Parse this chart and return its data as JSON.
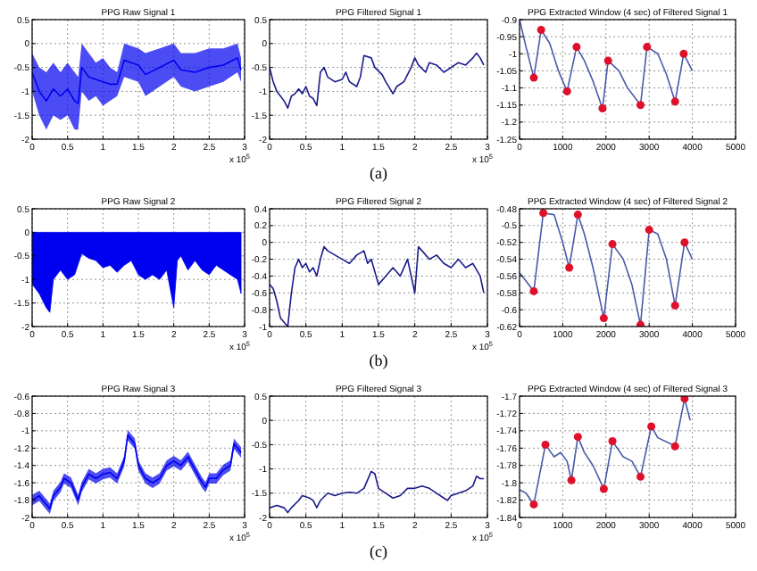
{
  "chart_data": [
    {
      "type": "line",
      "title": "PPG Raw Signal 1",
      "xlabel": "x 10$^{5}$",
      "xlim": [
        0,
        3
      ],
      "xticks": [
        0,
        0.5,
        1,
        1.5,
        2,
        2.5,
        3
      ],
      "ylim": [
        -2,
        0.5
      ],
      "yticks": [
        -2,
        -1.5,
        -1,
        -0.5,
        0,
        0.5
      ],
      "grid": true,
      "series": [
        {
          "color": "#0000f0",
          "x": [
            0,
            0.1,
            0.2,
            0.3,
            0.4,
            0.5,
            0.6,
            0.65,
            0.7,
            0.8,
            0.9,
            1.0,
            1.1,
            1.2,
            1.3,
            1.5,
            1.6,
            1.8,
            2.0,
            2.1,
            2.3,
            2.5,
            2.7,
            2.9,
            2.95
          ],
          "values": [
            -0.6,
            -1,
            -1.2,
            -0.95,
            -1.1,
            -0.95,
            -1.2,
            -1.25,
            -0.5,
            -0.7,
            -0.75,
            -0.8,
            -0.85,
            -0.85,
            -0.35,
            -0.45,
            -0.65,
            -0.5,
            -0.35,
            -0.55,
            -0.6,
            -0.5,
            -0.45,
            -0.3,
            -0.55
          ],
          "lower": [
            -1,
            -1.5,
            -1.8,
            -1.5,
            -1.6,
            -1.5,
            -1.8,
            -1.8,
            -1,
            -1.2,
            -1.1,
            -1.3,
            -1.2,
            -1.1,
            -0.7,
            -0.8,
            -1.1,
            -0.9,
            -0.7,
            -0.9,
            -1,
            -0.9,
            -0.8,
            -0.6,
            -0.8
          ],
          "upper": [
            -0.2,
            -0.5,
            -0.6,
            -0.4,
            -0.6,
            -0.4,
            -0.6,
            -0.7,
            0,
            -0.2,
            -0.4,
            -0.3,
            -0.5,
            -0.6,
            0,
            -0.1,
            -0.2,
            -0.1,
            0,
            -0.2,
            -0.2,
            -0.1,
            -0.1,
            0,
            -0.3
          ]
        }
      ]
    },
    {
      "type": "line",
      "title": "PPG Filtered Signal 1",
      "xlabel": "x 10$^{5}$",
      "annotations": [
        "(a)"
      ],
      "xlim": [
        0,
        3
      ],
      "xticks": [
        0,
        0.5,
        1,
        1.5,
        2,
        2.5,
        3
      ],
      "ylim": [
        -2,
        0.5
      ],
      "yticks": [
        -2,
        -1.5,
        -1,
        -0.5,
        0,
        0.5
      ],
      "grid": true,
      "series": [
        {
          "color": "#1a1a8c",
          "x": [
            0,
            0.05,
            0.1,
            0.15,
            0.2,
            0.25,
            0.3,
            0.35,
            0.4,
            0.45,
            0.5,
            0.55,
            0.6,
            0.65,
            0.7,
            0.75,
            0.8,
            0.9,
            1.0,
            1.05,
            1.1,
            1.2,
            1.25,
            1.3,
            1.4,
            1.45,
            1.55,
            1.6,
            1.7,
            1.75,
            1.85,
            1.95,
            2.0,
            2.05,
            2.15,
            2.2,
            2.3,
            2.4,
            2.5,
            2.6,
            2.7,
            2.8,
            2.85,
            2.9,
            2.95
          ],
          "values": [
            -0.5,
            -0.8,
            -1.0,
            -1.1,
            -1.2,
            -1.35,
            -1.1,
            -1.05,
            -0.95,
            -1.05,
            -0.9,
            -1.1,
            -1.15,
            -1.3,
            -0.6,
            -0.5,
            -0.7,
            -0.8,
            -0.75,
            -0.6,
            -0.8,
            -0.9,
            -0.7,
            -0.25,
            -0.3,
            -0.5,
            -0.65,
            -0.8,
            -1.05,
            -0.9,
            -0.8,
            -0.5,
            -0.3,
            -0.45,
            -0.6,
            -0.4,
            -0.45,
            -0.6,
            -0.5,
            -0.4,
            -0.45,
            -0.3,
            -0.2,
            -0.3,
            -0.45
          ]
        }
      ]
    },
    {
      "type": "line",
      "title": "PPG Extracted Window (4 sec) of Filtered Signal 1",
      "xlim": [
        0,
        5000
      ],
      "xticks": [
        0,
        1000,
        2000,
        3000,
        4000,
        5000
      ],
      "ylim": [
        -1.25,
        -0.9
      ],
      "yticks": [
        -1.25,
        -1.2,
        -1.15,
        -1.1,
        -1.05,
        -1,
        -0.95,
        -0.9
      ],
      "grid": true,
      "series": [
        {
          "color": "#4a5aa8",
          "x": [
            0,
            150,
            330,
            500,
            700,
            900,
            1100,
            1320,
            1500,
            1700,
            1920,
            2050,
            2300,
            2500,
            2800,
            2950,
            3200,
            3400,
            3600,
            3800,
            4000
          ],
          "values": [
            -0.9,
            -0.98,
            -1.07,
            -0.93,
            -0.97,
            -1.05,
            -1.11,
            -0.98,
            -1.02,
            -1.08,
            -1.16,
            -1.02,
            -1.05,
            -1.1,
            -1.15,
            -0.98,
            -1.0,
            -1.06,
            -1.14,
            -1.0,
            -1.05
          ]
        },
        {
          "type": "scatter",
          "marker": "circle",
          "color": "#e0102a",
          "x": [
            330,
            500,
            1100,
            1320,
            1920,
            2050,
            2800,
            2950,
            3600,
            3800
          ],
          "values": [
            -1.07,
            -0.93,
            -1.11,
            -0.98,
            -1.16,
            -1.02,
            -1.15,
            -0.98,
            -1.14,
            -1.0
          ]
        }
      ]
    },
    {
      "type": "area",
      "title": "PPG Raw Signal 2",
      "xlabel": "x 10$^{5}$",
      "xlim": [
        0,
        3
      ],
      "xticks": [
        0,
        0.5,
        1,
        1.5,
        2,
        2.5,
        3
      ],
      "ylim": [
        -2,
        0.5
      ],
      "yticks": [
        -2,
        -1.5,
        -1,
        -0.5,
        0,
        0.5
      ],
      "grid": true,
      "series": [
        {
          "color": "#0000f0",
          "x": [
            0,
            0.1,
            0.2,
            0.25,
            0.3,
            0.4,
            0.5,
            0.6,
            0.7,
            0.8,
            0.9,
            1.0,
            1.1,
            1.2,
            1.3,
            1.4,
            1.5,
            1.6,
            1.7,
            1.8,
            1.9,
            2.0,
            2.05,
            2.1,
            2.2,
            2.3,
            2.4,
            2.5,
            2.6,
            2.7,
            2.8,
            2.9,
            2.95
          ],
          "values": [
            -1.1,
            -1.3,
            -1.6,
            -1.7,
            -1.0,
            -0.8,
            -1.0,
            -0.9,
            -0.45,
            -0.55,
            -0.6,
            -0.75,
            -0.7,
            -0.85,
            -0.7,
            -0.6,
            -0.9,
            -1.0,
            -0.9,
            -1.0,
            -0.8,
            -1.6,
            -0.6,
            -0.5,
            -0.8,
            -0.6,
            -0.8,
            -0.9,
            -0.7,
            -0.8,
            -0.9,
            -1.0,
            -1.3
          ]
        }
      ]
    },
    {
      "type": "line",
      "title": "PPG Filtered Signal 2",
      "xlabel": "x 10$^{5}$",
      "annotations": [
        "(b)"
      ],
      "xlim": [
        0,
        3
      ],
      "xticks": [
        0,
        0.5,
        1,
        1.5,
        2,
        2.5,
        3
      ],
      "ylim": [
        -1,
        0.4
      ],
      "yticks": [
        -1,
        -0.8,
        -0.6,
        -0.4,
        -0.2,
        0,
        0.2,
        0.4
      ],
      "grid": true,
      "series": [
        {
          "color": "#1a1a8c",
          "x": [
            0,
            0.05,
            0.1,
            0.15,
            0.2,
            0.25,
            0.3,
            0.35,
            0.4,
            0.45,
            0.5,
            0.55,
            0.6,
            0.65,
            0.7,
            0.75,
            0.8,
            0.9,
            1.0,
            1.1,
            1.2,
            1.3,
            1.35,
            1.4,
            1.5,
            1.6,
            1.7,
            1.8,
            1.9,
            1.95,
            2.0,
            2.05,
            2.1,
            2.2,
            2.3,
            2.4,
            2.5,
            2.6,
            2.7,
            2.8,
            2.9,
            2.95
          ],
          "values": [
            -0.5,
            -0.55,
            -0.7,
            -0.9,
            -0.95,
            -1.0,
            -0.6,
            -0.3,
            -0.2,
            -0.3,
            -0.25,
            -0.35,
            -0.3,
            -0.4,
            -0.2,
            -0.05,
            -0.1,
            -0.15,
            -0.2,
            -0.25,
            -0.15,
            -0.1,
            -0.25,
            -0.2,
            -0.5,
            -0.4,
            -0.3,
            -0.4,
            -0.2,
            -0.4,
            -0.6,
            -0.05,
            -0.1,
            -0.2,
            -0.15,
            -0.25,
            -0.3,
            -0.2,
            -0.3,
            -0.25,
            -0.4,
            -0.6
          ]
        }
      ]
    },
    {
      "type": "line",
      "title": "PPG Extracted Window (4 sec) of Filtered Signal 2",
      "xlim": [
        0,
        5000
      ],
      "xticks": [
        0,
        1000,
        2000,
        3000,
        4000,
        5000
      ],
      "ylim": [
        -0.62,
        -0.48
      ],
      "yticks": [
        -0.62,
        -0.6,
        -0.58,
        -0.56,
        -0.54,
        -0.52,
        -0.5,
        -0.48
      ],
      "grid": true,
      "series": [
        {
          "color": "#4a5aa8",
          "x": [
            0,
            150,
            330,
            550,
            800,
            1000,
            1150,
            1350,
            1500,
            1700,
            1950,
            2150,
            2400,
            2600,
            2800,
            3000,
            3200,
            3400,
            3600,
            3820,
            4000
          ],
          "values": [
            -0.556,
            -0.566,
            -0.578,
            -0.485,
            -0.487,
            -0.52,
            -0.55,
            -0.487,
            -0.51,
            -0.55,
            -0.61,
            -0.522,
            -0.54,
            -0.57,
            -0.618,
            -0.505,
            -0.51,
            -0.54,
            -0.595,
            -0.52,
            -0.54
          ]
        },
        {
          "type": "scatter",
          "marker": "circle",
          "color": "#e0102a",
          "x": [
            330,
            550,
            1150,
            1350,
            1950,
            2150,
            2800,
            3000,
            3600,
            3820
          ],
          "values": [
            -0.578,
            -0.485,
            -0.55,
            -0.487,
            -0.61,
            -0.522,
            -0.618,
            -0.505,
            -0.595,
            -0.52
          ]
        }
      ]
    },
    {
      "type": "line",
      "title": "PPG Raw Signal 3",
      "xlabel": "x 10$^{5}$",
      "xlim": [
        0,
        3
      ],
      "xticks": [
        0,
        0.5,
        1,
        1.5,
        2,
        2.5,
        3
      ],
      "ylim": [
        -2,
        -0.6
      ],
      "yticks": [
        -2,
        -1.8,
        -1.6,
        -1.4,
        -1.2,
        -1,
        -0.8,
        -0.6
      ],
      "grid": true,
      "series": [
        {
          "color": "#0000f0",
          "x": [
            0,
            0.1,
            0.2,
            0.25,
            0.3,
            0.4,
            0.45,
            0.55,
            0.6,
            0.65,
            0.7,
            0.8,
            0.9,
            1.0,
            1.1,
            1.2,
            1.3,
            1.35,
            1.45,
            1.5,
            1.6,
            1.7,
            1.8,
            1.9,
            2.0,
            2.1,
            2.2,
            2.3,
            2.4,
            2.45,
            2.5,
            2.6,
            2.7,
            2.8,
            2.85,
            2.9,
            2.95
          ],
          "values": [
            -1.8,
            -1.75,
            -1.85,
            -1.9,
            -1.75,
            -1.65,
            -1.55,
            -1.6,
            -1.7,
            -1.8,
            -1.65,
            -1.5,
            -1.55,
            -1.5,
            -1.48,
            -1.55,
            -1.35,
            -1.05,
            -1.15,
            -1.4,
            -1.55,
            -1.6,
            -1.55,
            -1.4,
            -1.35,
            -1.4,
            -1.3,
            -1.45,
            -1.6,
            -1.65,
            -1.55,
            -1.55,
            -1.45,
            -1.4,
            -1.15,
            -1.2,
            -1.25
          ],
          "lower": [
            -1.86,
            -1.81,
            -1.91,
            -1.96,
            -1.81,
            -1.71,
            -1.61,
            -1.66,
            -1.76,
            -1.86,
            -1.71,
            -1.56,
            -1.61,
            -1.56,
            -1.54,
            -1.61,
            -1.41,
            -1.11,
            -1.21,
            -1.46,
            -1.61,
            -1.66,
            -1.61,
            -1.46,
            -1.41,
            -1.46,
            -1.36,
            -1.51,
            -1.66,
            -1.71,
            -1.61,
            -1.61,
            -1.51,
            -1.46,
            -1.21,
            -1.26,
            -1.31
          ],
          "upper": [
            -1.74,
            -1.69,
            -1.79,
            -1.84,
            -1.69,
            -1.59,
            -1.49,
            -1.54,
            -1.64,
            -1.74,
            -1.59,
            -1.44,
            -1.49,
            -1.44,
            -1.42,
            -1.49,
            -1.29,
            -0.99,
            -1.09,
            -1.34,
            -1.49,
            -1.54,
            -1.49,
            -1.34,
            -1.29,
            -1.34,
            -1.24,
            -1.39,
            -1.54,
            -1.59,
            -1.49,
            -1.49,
            -1.39,
            -1.34,
            -1.09,
            -1.14,
            -1.19
          ]
        }
      ]
    },
    {
      "type": "line",
      "title": "PPG Filtered Signal 3",
      "xlabel": "x 10$^{5}$",
      "annotations": [
        "(c)"
      ],
      "xlim": [
        0,
        3
      ],
      "xticks": [
        0,
        0.5,
        1,
        1.5,
        2,
        2.5,
        3
      ],
      "ylim": [
        -2,
        0.5
      ],
      "yticks": [
        -2,
        -1.5,
        -1,
        -0.5,
        0,
        0.5
      ],
      "grid": true,
      "series": [
        {
          "color": "#1a1a8c",
          "x": [
            0,
            0.1,
            0.2,
            0.25,
            0.3,
            0.4,
            0.45,
            0.55,
            0.6,
            0.65,
            0.7,
            0.8,
            0.9,
            1.0,
            1.1,
            1.2,
            1.3,
            1.4,
            1.45,
            1.5,
            1.6,
            1.7,
            1.8,
            1.9,
            2.0,
            2.1,
            2.2,
            2.3,
            2.4,
            2.45,
            2.5,
            2.6,
            2.7,
            2.8,
            2.85,
            2.9,
            2.95
          ],
          "values": [
            -1.8,
            -1.75,
            -1.8,
            -1.9,
            -1.8,
            -1.65,
            -1.55,
            -1.6,
            -1.65,
            -1.8,
            -1.65,
            -1.5,
            -1.55,
            -1.5,
            -1.48,
            -1.5,
            -1.4,
            -1.05,
            -1.1,
            -1.4,
            -1.5,
            -1.6,
            -1.55,
            -1.4,
            -1.4,
            -1.35,
            -1.4,
            -1.5,
            -1.6,
            -1.65,
            -1.55,
            -1.5,
            -1.45,
            -1.35,
            -1.15,
            -1.2,
            -1.2
          ]
        }
      ]
    },
    {
      "type": "line",
      "title": "PPG Extracted Window (4 sec) of Filtered Signal 3",
      "xlim": [
        0,
        5000
      ],
      "xticks": [
        0,
        1000,
        2000,
        3000,
        4000,
        5000
      ],
      "ylim": [
        -1.84,
        -1.7
      ],
      "yticks": [
        -1.84,
        -1.82,
        -1.8,
        -1.78,
        -1.76,
        -1.74,
        -1.72,
        -1.7
      ],
      "grid": true,
      "series": [
        {
          "color": "#4a5aa8",
          "x": [
            0,
            150,
            330,
            600,
            800,
            950,
            1100,
            1200,
            1350,
            1500,
            1700,
            1950,
            2150,
            2400,
            2600,
            2800,
            3050,
            3200,
            3500,
            3600,
            3820,
            3950
          ],
          "values": [
            -1.808,
            -1.812,
            -1.825,
            -1.756,
            -1.77,
            -1.765,
            -1.775,
            -1.797,
            -1.747,
            -1.765,
            -1.78,
            -1.807,
            -1.752,
            -1.77,
            -1.775,
            -1.793,
            -1.735,
            -1.748,
            -1.755,
            -1.758,
            -1.703,
            -1.728
          ]
        },
        {
          "type": "scatter",
          "marker": "circle",
          "color": "#e0102a",
          "x": [
            330,
            600,
            1200,
            1350,
            1950,
            2150,
            2800,
            3050,
            3600,
            3820
          ],
          "values": [
            -1.825,
            -1.756,
            -1.797,
            -1.747,
            -1.807,
            -1.752,
            -1.793,
            -1.735,
            -1.758,
            -1.703
          ]
        }
      ]
    }
  ]
}
